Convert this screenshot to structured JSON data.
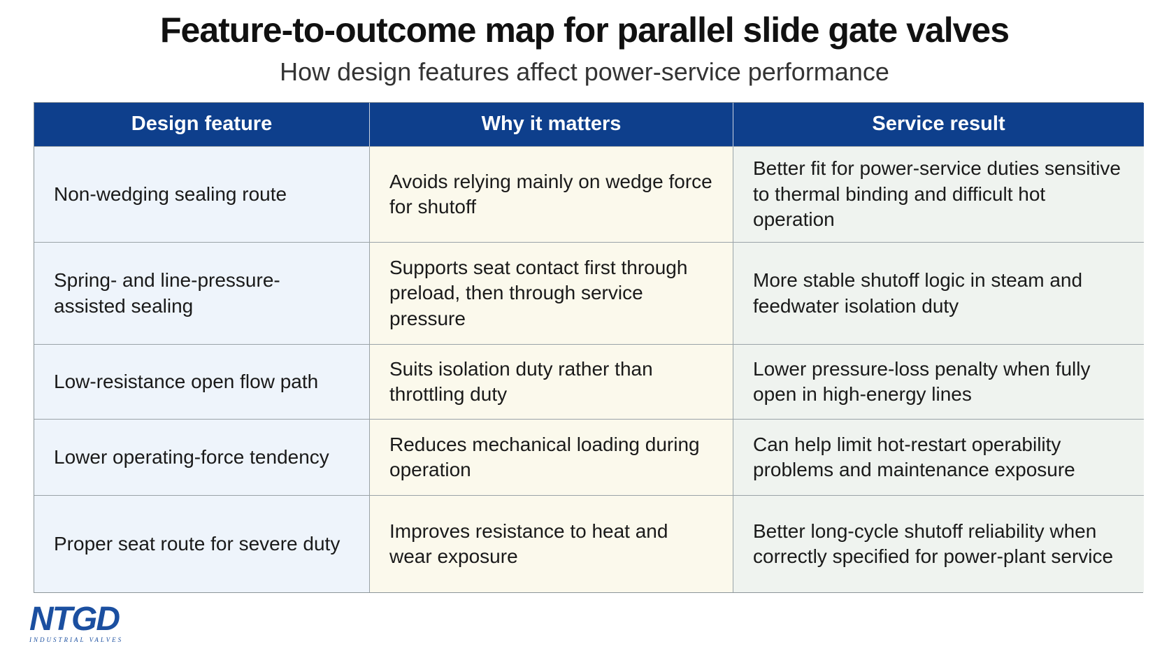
{
  "header": {
    "title": "Feature-to-outcome map for parallel slide gate valves",
    "subtitle": "How design features affect power-service performance"
  },
  "table": {
    "columns": [
      "Design feature",
      "Why it matters",
      "Service result"
    ],
    "rows": [
      [
        "Non-wedging sealing route",
        "Avoids relying mainly on wedge force for shutoff",
        "Better fit for power-service duties sensitive to thermal binding and difficult hot operation"
      ],
      [
        "Spring- and line-pressure-assisted sealing",
        "Supports seat contact first through preload, then through service pressure",
        "More stable shutoff logic in steam and feedwater isolation duty"
      ],
      [
        "Low-resistance open flow path",
        "Suits isolation duty rather than throttling duty",
        "Lower pressure-loss penalty when fully open in high-energy lines"
      ],
      [
        "Lower operating-force tendency",
        "Reduces mechanical loading during operation",
        "Can help limit hot-restart operability problems and maintenance exposure"
      ],
      [
        "Proper seat route for severe duty",
        "Improves resistance to heat and wear exposure",
        "Better long-cycle shutoff reliability when correctly specified for power-plant service"
      ]
    ]
  },
  "logo": {
    "name": "NTGD",
    "tagline": "INDUSTRIAL VALVES"
  }
}
